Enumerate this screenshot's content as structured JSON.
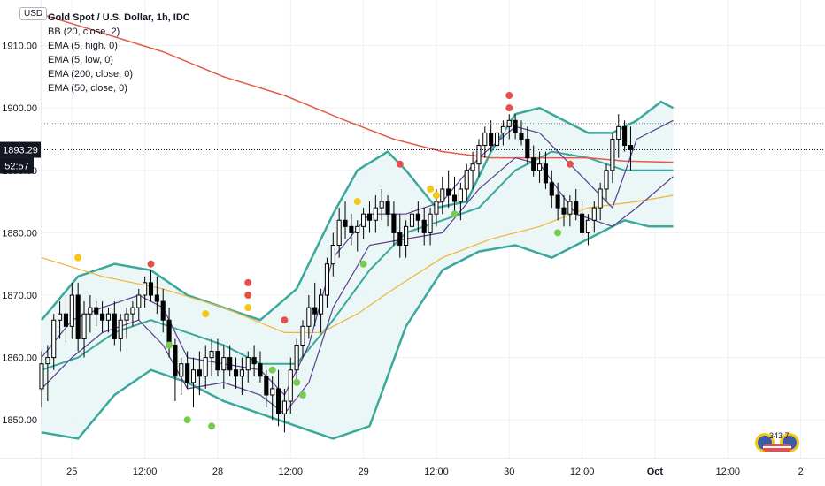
{
  "header": {
    "currency_button": "USD",
    "title": "Gold Spot / U.S. Dollar, 1h, IDC",
    "indicators": [
      "BB (20, close, 2)",
      "EMA (5, high, 0)",
      "EMA (5, low, 0)",
      "EMA (200, close, 0)",
      "EMA (50, close, 0)"
    ]
  },
  "price_labels": {
    "last_price": "1893.29",
    "countdown": "52:57"
  },
  "badge_text": "343 7",
  "colors": {
    "bb": "#3aa89b",
    "bb_fill": "#e6f4f5",
    "ema200": "#e45a4a",
    "ema50": "#f2b437",
    "ema_hl": "#5b3e8c",
    "candle": "#000000",
    "dot_red": "#e5504d",
    "dot_yellow": "#f5c518",
    "dot_green": "#77cc50",
    "grid": "#eef0f3",
    "axis_text": "#131722",
    "price_tag": "#131722"
  },
  "chart_data": {
    "type": "candlestick",
    "title": "Gold Spot / U.S. Dollar, 1h, IDC",
    "y_ticks": [
      1850,
      1860,
      1870,
      1880,
      1890,
      1900,
      1910
    ],
    "y_tick_labels": [
      "1850.00",
      "1860.00",
      "1870.00",
      "1880.00",
      "1890.00",
      "1900.00",
      "1910.00"
    ],
    "x_ticks": [
      {
        "index": 5,
        "label": "25"
      },
      {
        "index": 17,
        "label": "12:00"
      },
      {
        "index": 29,
        "label": "28"
      },
      {
        "index": 41,
        "label": "12:00"
      },
      {
        "index": 53,
        "label": "29"
      },
      {
        "index": 65,
        "label": "12:00"
      },
      {
        "index": 77,
        "label": "30"
      },
      {
        "index": 89,
        "label": "12:00"
      },
      {
        "index": 101,
        "label": "Oct"
      },
      {
        "index": 113,
        "label": "12:00"
      },
      {
        "index": 125,
        "label": "2"
      }
    ],
    "ylim": [
      1843.8,
      1917.3
    ],
    "x_range": [
      0,
      129
    ],
    "last_price": 1893.29,
    "grid": true,
    "candles": [
      [
        1855,
        1861,
        1852,
        1859
      ],
      [
        1859,
        1862,
        1853,
        1860
      ],
      [
        1860,
        1867,
        1858,
        1866
      ],
      [
        1866,
        1869,
        1863,
        1867
      ],
      [
        1867,
        1870,
        1862,
        1865
      ],
      [
        1865,
        1872,
        1863,
        1870
      ],
      [
        1870,
        1872,
        1861,
        1863
      ],
      [
        1863,
        1869,
        1860,
        1867
      ],
      [
        1867,
        1870,
        1864,
        1868
      ],
      [
        1868,
        1869,
        1865,
        1867
      ],
      [
        1867,
        1869,
        1864,
        1866
      ],
      [
        1866,
        1868,
        1864,
        1867
      ],
      [
        1867,
        1869,
        1862,
        1863
      ],
      [
        1863,
        1867,
        1861,
        1866
      ],
      [
        1866,
        1868,
        1863,
        1867
      ],
      [
        1867,
        1869,
        1865,
        1868
      ],
      [
        1868,
        1871,
        1866,
        1870
      ],
      [
        1870,
        1873,
        1868,
        1872
      ],
      [
        1872,
        1874,
        1869,
        1870
      ],
      [
        1870,
        1873,
        1867,
        1869
      ],
      [
        1869,
        1871,
        1864,
        1866
      ],
      [
        1866,
        1868,
        1860,
        1862
      ],
      [
        1862,
        1863,
        1853,
        1857
      ],
      [
        1857,
        1860,
        1854,
        1859
      ],
      [
        1859,
        1861,
        1855,
        1856
      ],
      [
        1856,
        1860,
        1852,
        1858
      ],
      [
        1858,
        1861,
        1854,
        1857
      ],
      [
        1857,
        1862,
        1855,
        1860
      ],
      [
        1860,
        1863,
        1857,
        1861
      ],
      [
        1861,
        1863,
        1857,
        1858
      ],
      [
        1858,
        1862,
        1855,
        1860
      ],
      [
        1860,
        1862,
        1857,
        1858
      ],
      [
        1858,
        1860,
        1855,
        1857
      ],
      [
        1857,
        1860,
        1854,
        1858
      ],
      [
        1858,
        1861,
        1856,
        1860
      ],
      [
        1860,
        1862,
        1857,
        1859
      ],
      [
        1859,
        1861,
        1856,
        1857
      ],
      [
        1857,
        1858,
        1852,
        1854
      ],
      [
        1854,
        1857,
        1850,
        1855
      ],
      [
        1855,
        1858,
        1849,
        1851
      ],
      [
        1851,
        1855,
        1848,
        1853
      ],
      [
        1853,
        1860,
        1851,
        1858
      ],
      [
        1858,
        1863,
        1856,
        1862
      ],
      [
        1862,
        1866,
        1860,
        1865
      ],
      [
        1865,
        1870,
        1863,
        1868
      ],
      [
        1868,
        1872,
        1865,
        1867
      ],
      [
        1867,
        1871,
        1864,
        1870
      ],
      [
        1870,
        1876,
        1868,
        1875
      ],
      [
        1875,
        1880,
        1873,
        1878
      ],
      [
        1878,
        1884,
        1876,
        1882
      ],
      [
        1882,
        1885,
        1879,
        1881
      ],
      [
        1881,
        1883,
        1878,
        1880
      ],
      [
        1880,
        1882,
        1877,
        1881
      ],
      [
        1881,
        1884,
        1879,
        1883
      ],
      [
        1883,
        1885,
        1880,
        1882
      ],
      [
        1882,
        1886,
        1880,
        1884
      ],
      [
        1884,
        1887,
        1882,
        1885
      ],
      [
        1885,
        1886,
        1881,
        1883
      ],
      [
        1883,
        1885,
        1878,
        1880
      ],
      [
        1880,
        1883,
        1876,
        1878
      ],
      [
        1878,
        1882,
        1876,
        1881
      ],
      [
        1881,
        1884,
        1879,
        1883
      ],
      [
        1883,
        1885,
        1880,
        1882
      ],
      [
        1882,
        1884,
        1878,
        1880
      ],
      [
        1880,
        1884,
        1878,
        1883
      ],
      [
        1883,
        1887,
        1881,
        1885
      ],
      [
        1885,
        1889,
        1883,
        1887
      ],
      [
        1887,
        1890,
        1884,
        1886
      ],
      [
        1886,
        1889,
        1883,
        1885
      ],
      [
        1885,
        1888,
        1882,
        1887
      ],
      [
        1887,
        1891,
        1885,
        1890
      ],
      [
        1890,
        1893,
        1887,
        1891
      ],
      [
        1891,
        1895,
        1889,
        1894
      ],
      [
        1894,
        1897,
        1892,
        1896
      ],
      [
        1896,
        1898,
        1893,
        1894
      ],
      [
        1894,
        1897,
        1892,
        1896
      ],
      [
        1896,
        1898,
        1894,
        1897
      ],
      [
        1897,
        1899,
        1895,
        1898
      ],
      [
        1898,
        1899,
        1895,
        1896
      ],
      [
        1896,
        1898,
        1894,
        1895
      ],
      [
        1895,
        1897,
        1891,
        1892
      ],
      [
        1892,
        1894,
        1889,
        1890
      ],
      [
        1890,
        1893,
        1888,
        1891
      ],
      [
        1891,
        1893,
        1887,
        1888
      ],
      [
        1888,
        1890,
        1884,
        1886
      ],
      [
        1886,
        1888,
        1882,
        1884
      ],
      [
        1884,
        1886,
        1881,
        1883
      ],
      [
        1883,
        1886,
        1881,
        1885
      ],
      [
        1885,
        1887,
        1882,
        1883
      ],
      [
        1883,
        1885,
        1879,
        1880
      ],
      [
        1880,
        1883,
        1878,
        1882
      ],
      [
        1882,
        1885,
        1880,
        1884
      ],
      [
        1884,
        1888,
        1882,
        1887
      ],
      [
        1887,
        1891,
        1885,
        1890
      ],
      [
        1890,
        1896,
        1888,
        1895
      ],
      [
        1895,
        1899,
        1892,
        1897
      ],
      [
        1897,
        1898,
        1893,
        1894
      ],
      [
        1894,
        1897,
        1890,
        1893.29
      ]
    ],
    "bb_upper": [
      [
        0,
        1866
      ],
      [
        6,
        1873
      ],
      [
        12,
        1875
      ],
      [
        18,
        1874
      ],
      [
        24,
        1870
      ],
      [
        30,
        1868
      ],
      [
        36,
        1866
      ],
      [
        42,
        1871
      ],
      [
        48,
        1883
      ],
      [
        52,
        1890
      ],
      [
        57,
        1893
      ],
      [
        60,
        1890
      ],
      [
        65,
        1884
      ],
      [
        70,
        1885
      ],
      [
        74,
        1893
      ],
      [
        78,
        1899
      ],
      [
        82,
        1900
      ],
      [
        86,
        1898
      ],
      [
        90,
        1896
      ],
      [
        94,
        1896
      ],
      [
        98,
        1898
      ],
      [
        102,
        1901
      ],
      [
        104,
        1900
      ]
    ],
    "bb_middle": [
      [
        0,
        1858
      ],
      [
        6,
        1860
      ],
      [
        12,
        1864
      ],
      [
        18,
        1866
      ],
      [
        24,
        1864
      ],
      [
        30,
        1862
      ],
      [
        36,
        1859
      ],
      [
        42,
        1859
      ],
      [
        48,
        1866
      ],
      [
        54,
        1874
      ],
      [
        60,
        1880
      ],
      [
        66,
        1882
      ],
      [
        72,
        1884
      ],
      [
        78,
        1890
      ],
      [
        84,
        1893
      ],
      [
        90,
        1892
      ],
      [
        96,
        1890
      ],
      [
        104,
        1890
      ]
    ],
    "bb_lower": [
      [
        0,
        1848
      ],
      [
        6,
        1847
      ],
      [
        12,
        1854
      ],
      [
        18,
        1858
      ],
      [
        24,
        1856
      ],
      [
        30,
        1853
      ],
      [
        36,
        1851
      ],
      [
        42,
        1849
      ],
      [
        48,
        1847
      ],
      [
        54,
        1849
      ],
      [
        60,
        1865
      ],
      [
        66,
        1874
      ],
      [
        72,
        1877
      ],
      [
        78,
        1878
      ],
      [
        84,
        1876
      ],
      [
        90,
        1879
      ],
      [
        96,
        1882
      ],
      [
        100,
        1881
      ],
      [
        104,
        1881
      ]
    ],
    "ema200": [
      [
        0,
        1915
      ],
      [
        10,
        1912
      ],
      [
        20,
        1909
      ],
      [
        30,
        1905
      ],
      [
        40,
        1902
      ],
      [
        50,
        1898
      ],
      [
        58,
        1895
      ],
      [
        66,
        1893
      ],
      [
        74,
        1892
      ],
      [
        82,
        1892
      ],
      [
        90,
        1892
      ],
      [
        96,
        1891.5
      ],
      [
        104,
        1891.3
      ]
    ],
    "ema50": [
      [
        0,
        1876
      ],
      [
        10,
        1873
      ],
      [
        20,
        1871
      ],
      [
        30,
        1868
      ],
      [
        40,
        1864
      ],
      [
        46,
        1864
      ],
      [
        52,
        1867
      ],
      [
        58,
        1871
      ],
      [
        66,
        1876
      ],
      [
        74,
        1879
      ],
      [
        82,
        1881
      ],
      [
        90,
        1884
      ],
      [
        98,
        1885
      ],
      [
        104,
        1886
      ]
    ],
    "ema_high": [
      [
        0,
        1860
      ],
      [
        5,
        1866
      ],
      [
        10,
        1868
      ],
      [
        16,
        1870
      ],
      [
        20,
        1868
      ],
      [
        24,
        1860
      ],
      [
        30,
        1859
      ],
      [
        36,
        1858
      ],
      [
        40,
        1854
      ],
      [
        44,
        1862
      ],
      [
        48,
        1876
      ],
      [
        54,
        1883
      ],
      [
        60,
        1883
      ],
      [
        66,
        1885
      ],
      [
        72,
        1892
      ],
      [
        78,
        1897
      ],
      [
        82,
        1896
      ],
      [
        88,
        1890
      ],
      [
        94,
        1884
      ],
      [
        98,
        1895
      ],
      [
        104,
        1898
      ]
    ],
    "ema_low": [
      [
        0,
        1855
      ],
      [
        5,
        1860
      ],
      [
        10,
        1864
      ],
      [
        16,
        1866
      ],
      [
        20,
        1862
      ],
      [
        24,
        1855
      ],
      [
        30,
        1856
      ],
      [
        36,
        1854
      ],
      [
        40,
        1851
      ],
      [
        44,
        1856
      ],
      [
        48,
        1868
      ],
      [
        54,
        1878
      ],
      [
        60,
        1879
      ],
      [
        66,
        1880
      ],
      [
        72,
        1887
      ],
      [
        78,
        1892
      ],
      [
        82,
        1891
      ],
      [
        88,
        1883
      ],
      [
        94,
        1881
      ],
      [
        98,
        1884
      ],
      [
        104,
        1889
      ]
    ],
    "dots": [
      {
        "index": 6,
        "price": 1876,
        "color": "yellow"
      },
      {
        "index": 18,
        "price": 1875,
        "color": "red"
      },
      {
        "index": 34,
        "price": 1872,
        "color": "red"
      },
      {
        "index": 34,
        "price": 1870,
        "color": "red"
      },
      {
        "index": 34,
        "price": 1868,
        "color": "yellow"
      },
      {
        "index": 27,
        "price": 1867,
        "color": "yellow"
      },
      {
        "index": 40,
        "price": 1866,
        "color": "red"
      },
      {
        "index": 21,
        "price": 1862,
        "color": "green"
      },
      {
        "index": 24,
        "price": 1850,
        "color": "green"
      },
      {
        "index": 28,
        "price": 1849,
        "color": "green"
      },
      {
        "index": 38,
        "price": 1858,
        "color": "green"
      },
      {
        "index": 42,
        "price": 1856,
        "color": "green"
      },
      {
        "index": 43,
        "price": 1854,
        "color": "green"
      },
      {
        "index": 52,
        "price": 1885,
        "color": "yellow"
      },
      {
        "index": 53,
        "price": 1875,
        "color": "green"
      },
      {
        "index": 59,
        "price": 1891,
        "color": "red"
      },
      {
        "index": 64,
        "price": 1887,
        "color": "yellow"
      },
      {
        "index": 65,
        "price": 1886,
        "color": "yellow"
      },
      {
        "index": 68,
        "price": 1883,
        "color": "green"
      },
      {
        "index": 77,
        "price": 1902,
        "color": "red"
      },
      {
        "index": 77,
        "price": 1900,
        "color": "red"
      },
      {
        "index": 87,
        "price": 1891,
        "color": "red"
      },
      {
        "index": 85,
        "price": 1880,
        "color": "green"
      }
    ]
  }
}
